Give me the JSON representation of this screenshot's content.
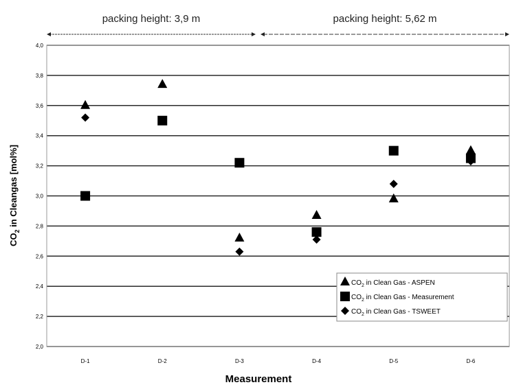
{
  "chart_data": {
    "type": "scatter",
    "title": "",
    "xlabel": "Measurement",
    "ylabel": "CO2 in Cleangas [mol%]",
    "ylabel_main": "CO",
    "ylabel_sub": "2",
    "ylabel_rest": " in Cleangas [mol%]",
    "categories": [
      "D-1",
      "D-2",
      "D-3",
      "D-4",
      "D-5",
      "D-6"
    ],
    "ylim": [
      2.0,
      4.0
    ],
    "yticks": [
      "2,0",
      "2,2",
      "2,4",
      "2,6",
      "2,8",
      "3,0",
      "3,2",
      "3,4",
      "3,6",
      "3,8",
      "4,0"
    ],
    "grid": true,
    "legend_position": "bottom-right",
    "series": [
      {
        "name": "CO2 in Clean Gas - ASPEN",
        "legend_prefix": "CO",
        "legend_sub": "2",
        "legend_rest": " in Clean Gas - ASPEN",
        "marker": "triangle",
        "values": [
          3.6,
          3.74,
          2.72,
          2.87,
          2.98,
          3.3
        ]
      },
      {
        "name": "CO2 in Clean Gas - Measurement",
        "legend_prefix": "CO",
        "legend_sub": "2",
        "legend_rest": " in Clean Gas - Measurement",
        "marker": "square",
        "values": [
          3.0,
          3.5,
          3.22,
          2.76,
          3.3,
          3.25
        ]
      },
      {
        "name": "CO2 in Clean Gas - TSWEET",
        "legend_prefix": "CO",
        "legend_sub": "2",
        "legend_rest": " in Clean Gas - TSWEET",
        "marker": "diamond",
        "values": [
          3.52,
          null,
          2.63,
          2.71,
          3.08,
          3.23
        ]
      }
    ],
    "annotations": [
      {
        "text": "packing height: 3,9 m",
        "from_category": 0,
        "to_category": 2
      },
      {
        "text": "packing height: 5,62 m",
        "from_category": 3,
        "to_category": 5
      }
    ]
  }
}
